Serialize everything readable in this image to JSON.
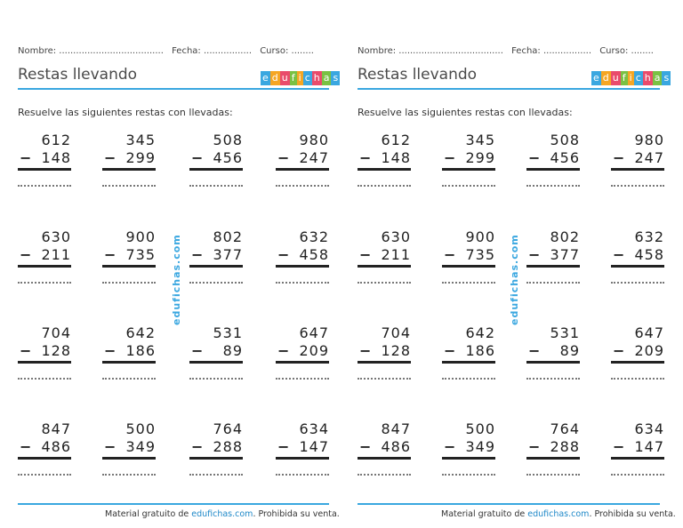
{
  "header": {
    "name_label": "Nombre: .....................................",
    "date_label": "Fecha: .................",
    "course_label": "Curso: ........"
  },
  "title": "Restas llevando",
  "logo": {
    "letters": [
      "e",
      "d",
      "u",
      "f",
      "i",
      "c",
      "h",
      "a",
      "s"
    ],
    "colors": [
      "#3aa7e0",
      "#f5a623",
      "#e94b6b",
      "#7ac143",
      "#f5a623",
      "#3aa7e0",
      "#e94b6b",
      "#7ac143",
      "#3aa7e0"
    ]
  },
  "instruction": "Resuelve las siguientes restas con llevadas:",
  "problems": [
    [
      {
        "top": "612",
        "bottom": "148"
      },
      {
        "top": "345",
        "bottom": "299"
      },
      {
        "top": "508",
        "bottom": "456"
      },
      {
        "top": "980",
        "bottom": "247"
      }
    ],
    [
      {
        "top": "630",
        "bottom": "211"
      },
      {
        "top": "900",
        "bottom": "735"
      },
      {
        "top": "802",
        "bottom": "377"
      },
      {
        "top": "632",
        "bottom": "458"
      }
    ],
    [
      {
        "top": "704",
        "bottom": "128"
      },
      {
        "top": "642",
        "bottom": "186"
      },
      {
        "top": "531",
        "bottom": "89"
      },
      {
        "top": "647",
        "bottom": "209"
      }
    ],
    [
      {
        "top": "847",
        "bottom": "486"
      },
      {
        "top": "500",
        "bottom": "349"
      },
      {
        "top": "764",
        "bottom": "288"
      },
      {
        "top": "634",
        "bottom": "147"
      }
    ]
  ],
  "minus_sign": "−",
  "watermark": "edufichas.com",
  "footer": {
    "prefix": "Material gratuito de ",
    "link": "edufichas.com",
    "suffix": ". Prohibida su venta."
  },
  "colors": {
    "accent": "#3aa7e0",
    "link": "#1e88c8"
  }
}
